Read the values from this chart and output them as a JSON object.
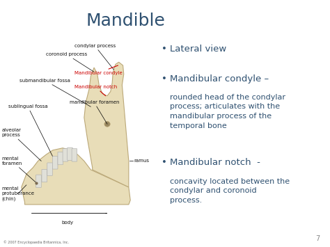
{
  "title": "Mandible",
  "title_color": "#2E5070",
  "title_fontsize": 18,
  "background_color": "#FFFFFF",
  "slide_number": "7",
  "text_color": "#2E5070",
  "bullet1_header": "Lateral view",
  "bullet2_header": "Mandibular condyle –",
  "bullet2_body": "rounded head of the condylar\nprocess; articulates with the\nmandibular process of the\ntemporal bone",
  "bullet3_header": "Mandibular notch  -",
  "bullet3_body": "concavity located between the\ncondylar and coronoid\nprocess.",
  "copyright": "© 2007 Encyclopaedia Britannica, Inc.",
  "bone_color": "#E8DDB8",
  "bone_edge": "#BBA878",
  "tooth_color": "#E0E0D8",
  "tooth_edge": "#AAAAAA",
  "label_color": "#111111",
  "red_label_color": "#CC0000",
  "header_fontsize": 9.5,
  "body_fontsize": 8.0,
  "label_fontsize": 5.0
}
